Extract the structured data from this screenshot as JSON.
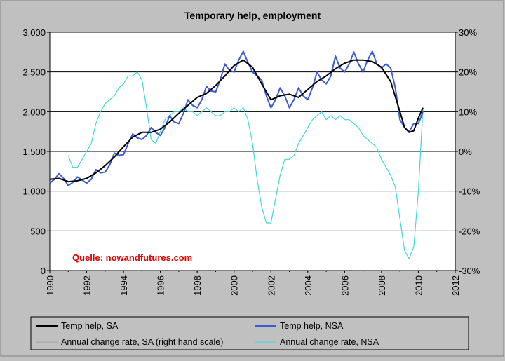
{
  "colors": {
    "background": "#c0c0c0",
    "sa": "#000000",
    "nsa": "#3b5bd6",
    "annual_sa": "#a0a0a0",
    "annual_nsa": "#40d8d8",
    "source_note": "#e00000"
  },
  "source_note": "Quelle: nowandfutures.com",
  "chart_data": {
    "type": "line",
    "title": "Temporary help, employment",
    "xlabel": "",
    "ylabel": "",
    "xlim": [
      1990,
      2012
    ],
    "ylim": [
      0,
      3000
    ],
    "y2lim": [
      -30,
      30
    ],
    "grid": "horizontal",
    "legend_position": "bottom",
    "x_ticks": [
      "1990",
      "1992",
      "1994",
      "1996",
      "1998",
      "2000",
      "2002",
      "2004",
      "2006",
      "2008",
      "2010",
      "2012"
    ],
    "y_ticks": [
      "0",
      "500",
      "1,000",
      "1,500",
      "2,000",
      "2,500",
      "3,000"
    ],
    "y2_ticks": [
      "-30%",
      "-20%",
      "-10%",
      "0%",
      "10%",
      "20%",
      "30%"
    ],
    "series": [
      {
        "name": "Temp help, SA",
        "axis": "left",
        "x": [
          1990,
          1990.5,
          1991,
          1991.5,
          1992,
          1992.5,
          1993,
          1993.5,
          1994,
          1994.5,
          1995,
          1995.5,
          1996,
          1996.5,
          1997,
          1997.5,
          1998,
          1998.5,
          1999,
          1999.5,
          2000,
          2000.5,
          2001,
          2001.5,
          2002,
          2002.5,
          2003,
          2003.5,
          2004,
          2004.5,
          2005,
          2005.5,
          2006,
          2006.5,
          2007,
          2007.5,
          2008,
          2008.5,
          2009,
          2009.25,
          2009.5,
          2009.75,
          2010,
          2010.25
        ],
        "values": [
          1150,
          1160,
          1120,
          1130,
          1160,
          1230,
          1320,
          1430,
          1560,
          1680,
          1740,
          1740,
          1780,
          1870,
          1980,
          2080,
          2180,
          2230,
          2330,
          2450,
          2580,
          2650,
          2560,
          2350,
          2150,
          2200,
          2220,
          2180,
          2280,
          2380,
          2450,
          2540,
          2610,
          2650,
          2650,
          2630,
          2560,
          2380,
          2000,
          1800,
          1740,
          1760,
          1920,
          2050
        ]
      },
      {
        "name": "Temp help, NSA",
        "axis": "left",
        "x": [
          1990,
          1990.25,
          1990.5,
          1990.75,
          1991,
          1991.25,
          1991.5,
          1991.75,
          1992,
          1992.25,
          1992.5,
          1992.75,
          1993,
          1993.25,
          1993.5,
          1993.75,
          1994,
          1994.25,
          1994.5,
          1994.75,
          1995,
          1995.25,
          1995.5,
          1995.75,
          1996,
          1996.25,
          1996.5,
          1996.75,
          1997,
          1997.25,
          1997.5,
          1997.75,
          1998,
          1998.25,
          1998.5,
          1998.75,
          1999,
          1999.25,
          1999.5,
          1999.75,
          2000,
          2000.25,
          2000.5,
          2000.75,
          2001,
          2001.25,
          2001.5,
          2001.75,
          2002,
          2002.25,
          2002.5,
          2002.75,
          2003,
          2003.25,
          2003.5,
          2003.75,
          2004,
          2004.25,
          2004.5,
          2004.75,
          2005,
          2005.25,
          2005.5,
          2005.75,
          2006,
          2006.25,
          2006.5,
          2006.75,
          2007,
          2007.25,
          2007.5,
          2007.75,
          2008,
          2008.25,
          2008.5,
          2008.75,
          2009,
          2009.25,
          2009.5,
          2009.75,
          2010,
          2010.25
        ],
        "values": [
          1100,
          1150,
          1220,
          1160,
          1070,
          1110,
          1180,
          1140,
          1100,
          1150,
          1270,
          1230,
          1240,
          1330,
          1480,
          1450,
          1460,
          1600,
          1720,
          1670,
          1650,
          1700,
          1800,
          1740,
          1700,
          1800,
          1950,
          1870,
          1850,
          1980,
          2150,
          2080,
          2050,
          2150,
          2320,
          2260,
          2250,
          2400,
          2600,
          2520,
          2500,
          2650,
          2760,
          2620,
          2500,
          2450,
          2400,
          2200,
          2050,
          2150,
          2300,
          2200,
          2050,
          2150,
          2300,
          2200,
          2150,
          2300,
          2500,
          2400,
          2350,
          2450,
          2700,
          2550,
          2500,
          2600,
          2750,
          2600,
          2500,
          2650,
          2760,
          2600,
          2550,
          2600,
          2550,
          2300,
          1900,
          1800,
          1750,
          1850,
          1850,
          2000
        ]
      },
      {
        "name": "Annual change rate, SA (right hand scale)",
        "axis": "right",
        "x": [],
        "values": []
      },
      {
        "name": "Annual change rate, NSA",
        "axis": "right",
        "x": [
          1991,
          1991.25,
          1991.5,
          1991.75,
          1992,
          1992.25,
          1992.5,
          1992.75,
          1993,
          1993.25,
          1993.5,
          1993.75,
          1994,
          1994.25,
          1994.5,
          1994.75,
          1995,
          1995.25,
          1995.5,
          1995.75,
          1996,
          1996.25,
          1996.5,
          1996.75,
          1997,
          1997.25,
          1997.5,
          1997.75,
          1998,
          1998.25,
          1998.5,
          1998.75,
          1999,
          1999.25,
          1999.5,
          1999.75,
          2000,
          2000.25,
          2000.5,
          2000.75,
          2001,
          2001.25,
          2001.5,
          2001.75,
          2002,
          2002.25,
          2002.5,
          2002.75,
          2003,
          2003.25,
          2003.5,
          2003.75,
          2004,
          2004.25,
          2004.5,
          2004.75,
          2005,
          2005.25,
          2005.5,
          2005.75,
          2006,
          2006.25,
          2006.5,
          2006.75,
          2007,
          2007.25,
          2007.5,
          2007.75,
          2008,
          2008.25,
          2008.5,
          2008.75,
          2009,
          2009.25,
          2009.5,
          2009.75,
          2010,
          2010.25
        ],
        "values": [
          -1,
          -4,
          -4,
          -2,
          0,
          2,
          7,
          10,
          12,
          13,
          14,
          16,
          17,
          19,
          19,
          20,
          18,
          11,
          3,
          2,
          5,
          8,
          9,
          10,
          10,
          11,
          10,
          10,
          9,
          10,
          11,
          10,
          9,
          9,
          10,
          10,
          11,
          10,
          11,
          8,
          2,
          -7,
          -14,
          -18,
          -18,
          -12,
          -6,
          -2,
          -2,
          -1,
          2,
          4,
          6,
          8,
          9,
          10,
          8,
          9,
          8,
          9,
          8,
          8,
          7,
          6,
          4,
          3,
          2,
          1,
          -2,
          -4,
          -6,
          -9,
          -17,
          -25,
          -27,
          -24,
          -10,
          11
        ]
      }
    ]
  }
}
